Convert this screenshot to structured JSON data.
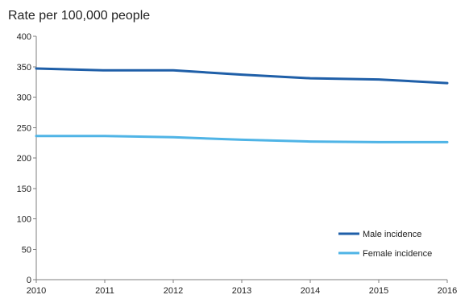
{
  "chart_data": {
    "type": "line",
    "ylabel": "Rate per 100,000 people",
    "xlabel": "",
    "x": [
      2010,
      2011,
      2012,
      2013,
      2014,
      2015,
      2016
    ],
    "x_tick_labels": [
      "2010",
      "2011",
      "2012",
      "2013",
      "2014",
      "2015",
      "2016"
    ],
    "ylim": [
      0,
      400
    ],
    "y_ticks": [
      0,
      50,
      100,
      150,
      200,
      250,
      300,
      350,
      400
    ],
    "y_tick_labels": [
      "0",
      "50",
      "100",
      "150",
      "200",
      "250",
      "300",
      "350",
      "400"
    ],
    "grid": false,
    "legend_position": "bottom-right",
    "series": [
      {
        "name": "Male incidence",
        "color": "#1f5fa8",
        "values": [
          347,
          344,
          344,
          337,
          331,
          329,
          323
        ]
      },
      {
        "name": "Female incidence",
        "color": "#4fb4e6",
        "values": [
          236,
          236,
          234,
          230,
          227,
          226,
          226
        ]
      }
    ]
  }
}
